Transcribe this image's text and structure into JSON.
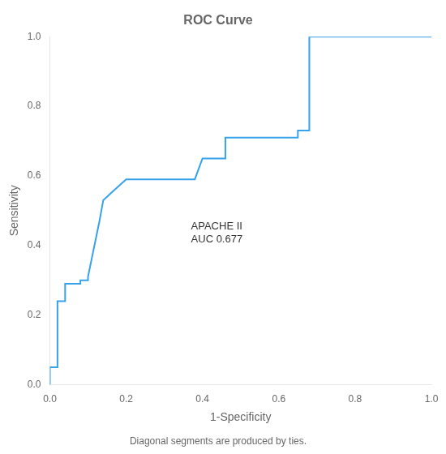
{
  "chart_data": {
    "type": "line",
    "title": "ROC Curve",
    "xlabel": "1-Specificity",
    "ylabel": "Sensitivity",
    "footnote": "Diagonal segments are produced by ties.",
    "annotations": [
      {
        "text": "APACHE II\nAUC 0.677",
        "x": 0.37,
        "y": 0.435
      }
    ],
    "x": [
      0.0,
      0.0,
      0.02,
      0.02,
      0.04,
      0.04,
      0.08,
      0.08,
      0.1,
      0.1,
      0.13,
      0.14,
      0.16,
      0.18,
      0.2,
      0.2,
      0.22,
      0.22,
      0.38,
      0.4,
      0.46,
      0.46,
      0.53,
      0.53,
      0.65,
      0.65,
      0.68,
      0.68,
      1.0
    ],
    "values": [
      0.0,
      0.05,
      0.05,
      0.24,
      0.24,
      0.29,
      0.29,
      0.3,
      0.3,
      0.31,
      0.47,
      0.53,
      0.55,
      0.57,
      0.59,
      0.59,
      0.59,
      0.59,
      0.59,
      0.65,
      0.65,
      0.71,
      0.71,
      0.71,
      0.71,
      0.73,
      0.73,
      1.0,
      1.0
    ],
    "xlim": [
      0.0,
      1.0
    ],
    "ylim": [
      0.0,
      1.0
    ],
    "xticks": [
      {
        "value": 0.0,
        "label": "0.0"
      },
      0.2,
      0.4,
      0.6,
      0.8,
      {
        "value": 1.0,
        "label": "1.0"
      }
    ],
    "yticks": [
      {
        "value": 0.0,
        "label": "0.0"
      },
      0.2,
      0.4,
      0.6,
      0.8,
      {
        "value": 1.0,
        "label": "1.0"
      }
    ],
    "grid": false
  }
}
